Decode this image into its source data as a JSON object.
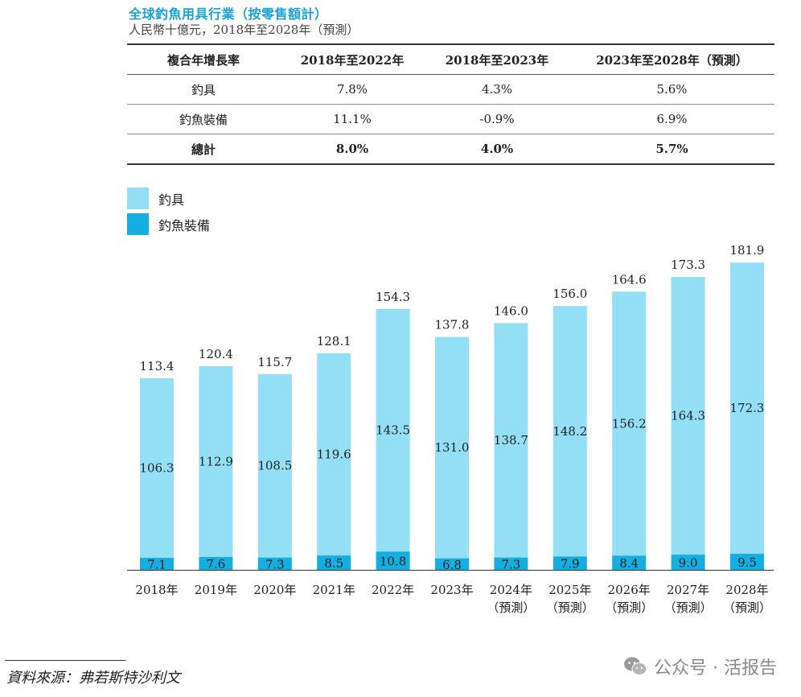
{
  "title": "全球釣魚用具行業（按零售額計）",
  "subtitle": "人民幣十億元，2018年至2028年（預測）",
  "cagr_table": {
    "headers": [
      "複合年增長率",
      "2018年至2022年",
      "2018年至2023年",
      "2023年至2028年（預測）"
    ],
    "rows": [
      {
        "label": "釣具",
        "values": [
          "7.8%",
          "4.3%",
          "5.6%"
        ]
      },
      {
        "label": "釣魚裝備",
        "values": [
          "11.1%",
          "-0.9%",
          "6.9%"
        ]
      }
    ],
    "total": {
      "label": "總計",
      "values": [
        "8.0%",
        "4.0%",
        "5.7%"
      ]
    }
  },
  "legend": [
    {
      "label": "釣具",
      "color": "#93dff5"
    },
    {
      "label": "釣魚裝備",
      "color": "#15aee0"
    }
  ],
  "chart_data": {
    "type": "bar",
    "stacked": true,
    "categories": [
      "2018年",
      "2019年",
      "2020年",
      "2021年",
      "2022年",
      "2023年",
      "2024年",
      "2025年",
      "2026年",
      "2027年",
      "2028年"
    ],
    "category_notes": [
      "",
      "",
      "",
      "",
      "",
      "",
      "（預測）",
      "（預測）",
      "（預測）",
      "（預測）",
      "（預測）"
    ],
    "series": [
      {
        "name": "釣魚裝備",
        "color": "#15aee0",
        "values": [
          7.1,
          7.6,
          7.3,
          8.5,
          10.8,
          6.8,
          7.3,
          7.9,
          8.4,
          9.0,
          9.5
        ]
      },
      {
        "name": "釣具",
        "color": "#93dff5",
        "values": [
          106.3,
          112.9,
          108.5,
          119.6,
          143.5,
          131.0,
          138.7,
          148.2,
          156.2,
          164.3,
          172.3
        ]
      }
    ],
    "totals": [
      "113.4",
      "120.4",
      "115.7",
      "128.1",
      "154.3",
      "137.8",
      "146.0",
      "156.0",
      "164.6",
      "173.3",
      "181.9"
    ],
    "ylim": [
      0,
      200
    ]
  },
  "source": "資料來源：弗若斯特沙利文",
  "watermark": {
    "text": "公众号 · 活报告",
    "icon": "wechat-icon"
  }
}
